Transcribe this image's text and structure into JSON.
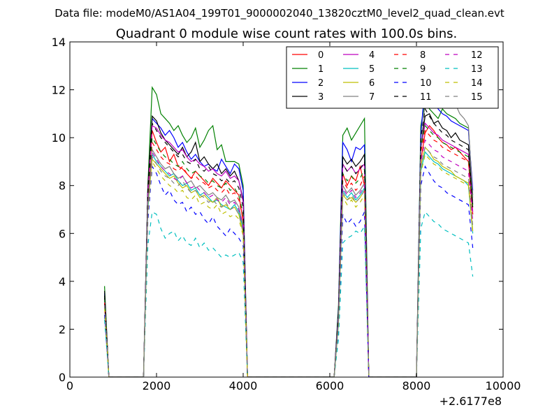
{
  "chart_data": {
    "type": "line",
    "suptitle": "Data file: modeM0/AS1A04_199T01_9000002040_13820cztM0_level2_quad_clean.evt",
    "title": "Quadrant 0 module wise count rates with 100.0s bins.",
    "xlabel": "",
    "ylabel": "",
    "xlim": [
      0,
      10000
    ],
    "ylim": [
      0,
      14
    ],
    "x_offset_label": "+2.6177e8",
    "x_ticks": [
      0,
      2000,
      4000,
      6000,
      8000,
      10000
    ],
    "x_tick_labels": [
      "0",
      "2000",
      "4000",
      "6000",
      "8000",
      "10000"
    ],
    "y_ticks": [
      0,
      2,
      4,
      6,
      8,
      10,
      12,
      14
    ],
    "y_tick_labels": [
      "0",
      "2",
      "4",
      "6",
      "8",
      "10",
      "12",
      "14"
    ],
    "legend": {
      "location": "upper right",
      "columns": 4
    },
    "segments": [
      {
        "x0": 800,
        "step": 100,
        "n": 2
      },
      {
        "x0": 1700,
        "step": 100,
        "n": 25
      },
      {
        "x0": 6100,
        "step": 100,
        "n": 9
      },
      {
        "x0": 8000,
        "step": 100,
        "n": 14
      }
    ],
    "series": [
      {
        "name": "0",
        "color": "#ff0000",
        "dashed": false,
        "segments": [
          [
            3.2,
            0
          ],
          [
            0,
            7.5,
            10.3,
            9.8,
            9.4,
            9.6,
            9.0,
            9.3,
            8.8,
            8.7,
            8.5,
            8.3,
            8.6,
            8.4,
            8.2,
            8.0,
            8.3,
            8.1,
            7.9,
            8.2,
            8.0,
            7.8,
            7.6,
            6.5,
            0
          ],
          [
            0,
            2.5,
            8.5,
            8.0,
            8.4,
            8.2,
            8.8,
            8.0,
            0
          ],
          [
            0,
            9.0,
            10.2,
            10.5,
            10.3,
            10.0,
            9.8,
            9.7,
            9.5,
            9.6,
            9.4,
            9.2,
            9.0,
            6.8
          ]
        ]
      },
      {
        "name": "1",
        "color": "#008000",
        "dashed": false,
        "segments": [
          [
            3.8,
            0
          ],
          [
            0,
            8.0,
            12.1,
            11.8,
            11.0,
            10.8,
            10.6,
            10.3,
            10.5,
            10.1,
            9.8,
            10.0,
            10.4,
            9.6,
            9.9,
            10.3,
            10.5,
            9.5,
            9.7,
            9.0,
            9.0,
            9.0,
            8.9,
            8.0,
            0
          ],
          [
            0,
            3.0,
            10.1,
            10.4,
            9.9,
            10.2,
            10.5,
            10.8,
            0
          ],
          [
            0,
            10.5,
            11.5,
            11.2,
            11.0,
            10.8,
            11.2,
            11.0,
            10.9,
            10.8,
            10.6,
            10.5,
            10.4,
            7.6
          ]
        ]
      },
      {
        "name": "2",
        "color": "#0000ff",
        "dashed": false,
        "segments": [
          [
            3.5,
            0
          ],
          [
            0,
            7.8,
            10.8,
            10.6,
            10.4,
            10.1,
            10.3,
            10.0,
            9.6,
            9.8,
            9.4,
            9.1,
            9.3,
            9.0,
            8.8,
            8.9,
            8.7,
            8.6,
            9.1,
            8.8,
            8.5,
            8.9,
            8.7,
            7.8,
            0
          ],
          [
            0,
            2.8,
            9.8,
            9.5,
            9.0,
            9.6,
            9.5,
            9.7,
            0
          ],
          [
            0,
            10.1,
            12.3,
            11.9,
            11.6,
            11.2,
            11.0,
            10.9,
            10.7,
            10.6,
            10.5,
            10.4,
            10.3,
            7.8
          ]
        ]
      },
      {
        "name": "3",
        "color": "#000000",
        "dashed": false,
        "segments": [
          [
            3.6,
            0
          ],
          [
            0,
            7.9,
            10.9,
            10.7,
            10.2,
            9.9,
            9.7,
            9.5,
            9.3,
            9.6,
            9.2,
            9.4,
            9.8,
            9.0,
            9.2,
            8.9,
            8.7,
            8.9,
            8.5,
            8.7,
            8.4,
            8.6,
            8.2,
            7.4,
            0
          ],
          [
            0,
            2.7,
            9.2,
            8.9,
            9.1,
            8.8,
            9.0,
            9.3,
            0
          ],
          [
            0,
            9.6,
            10.9,
            11.0,
            10.6,
            10.7,
            10.4,
            10.3,
            10.0,
            10.2,
            9.9,
            9.8,
            9.7,
            7.2
          ]
        ]
      },
      {
        "name": "4",
        "color": "#bf00bf",
        "dashed": false,
        "segments": [
          [
            3.3,
            0
          ],
          [
            0,
            7.7,
            10.5,
            10.4,
            10.1,
            9.9,
            9.8,
            9.6,
            9.4,
            9.5,
            9.2,
            9.0,
            9.1,
            8.9,
            8.8,
            8.6,
            8.7,
            8.5,
            8.4,
            8.6,
            8.3,
            8.4,
            8.2,
            7.3,
            0
          ],
          [
            0,
            2.6,
            8.9,
            8.6,
            8.8,
            8.5,
            8.7,
            8.9,
            0
          ],
          [
            0,
            9.5,
            10.6,
            10.4,
            10.2,
            10.1,
            9.9,
            9.8,
            9.7,
            9.6,
            9.5,
            9.4,
            9.3,
            6.9
          ]
        ]
      },
      {
        "name": "5",
        "color": "#00bfbf",
        "dashed": false,
        "segments": [
          [
            3.0,
            0
          ],
          [
            0,
            7.0,
            9.3,
            9.0,
            8.8,
            8.6,
            8.4,
            8.5,
            8.2,
            8.0,
            8.1,
            7.8,
            7.9,
            7.6,
            7.7,
            7.5,
            7.3,
            7.4,
            7.2,
            7.1,
            7.0,
            7.2,
            6.9,
            6.2,
            0
          ],
          [
            0,
            2.2,
            7.8,
            7.5,
            7.7,
            7.4,
            7.6,
            7.9,
            0
          ],
          [
            0,
            8.6,
            9.4,
            9.2,
            9.0,
            8.9,
            8.7,
            8.6,
            8.5,
            8.4,
            8.3,
            8.2,
            8.0,
            6.0
          ]
        ]
      },
      {
        "name": "6",
        "color": "#bfbf00",
        "dashed": false,
        "segments": [
          [
            3.1,
            0
          ],
          [
            0,
            7.2,
            9.1,
            8.9,
            8.7,
            8.5,
            8.3,
            8.4,
            8.1,
            7.9,
            8.0,
            7.7,
            7.8,
            7.5,
            7.6,
            7.4,
            7.3,
            7.5,
            7.1,
            7.2,
            7.0,
            7.1,
            6.8,
            6.0,
            0
          ],
          [
            0,
            2.3,
            7.6,
            7.4,
            7.5,
            7.3,
            7.5,
            7.8,
            0
          ],
          [
            0,
            8.8,
            9.6,
            9.4,
            9.1,
            9.0,
            8.8,
            8.7,
            8.6,
            8.4,
            8.3,
            8.2,
            8.1,
            6.1
          ]
        ]
      },
      {
        "name": "7",
        "color": "#808080",
        "dashed": false,
        "segments": [
          [
            3.2,
            0
          ],
          [
            0,
            7.3,
            9.5,
            9.2,
            8.9,
            8.7,
            8.8,
            8.5,
            8.3,
            8.4,
            8.1,
            8.2,
            7.9,
            8.0,
            7.8,
            7.6,
            7.7,
            7.5,
            7.4,
            7.6,
            7.3,
            7.4,
            7.1,
            6.3,
            0
          ],
          [
            0,
            2.4,
            8.0,
            7.7,
            7.9,
            7.6,
            7.8,
            8.1,
            0
          ],
          [
            0,
            9.5,
            11.5,
            11.8,
            11.6,
            11.9,
            11.7,
            12.0,
            11.6,
            11.4,
            11.0,
            10.8,
            10.5,
            7.5
          ]
        ]
      },
      {
        "name": "8",
        "color": "#ff0000",
        "dashed": true,
        "segments": [
          [
            3.1,
            0
          ],
          [
            0,
            7.4,
            9.8,
            9.5,
            9.2,
            9.0,
            8.9,
            8.7,
            8.6,
            8.8,
            8.5,
            8.3,
            8.4,
            8.2,
            8.1,
            7.9,
            8.0,
            7.8,
            7.7,
            7.9,
            7.6,
            7.7,
            7.4,
            6.6,
            0
          ],
          [
            0,
            2.5,
            8.2,
            7.9,
            8.1,
            7.8,
            8.0,
            8.4,
            0
          ],
          [
            0,
            9.4,
            10.3,
            10.1,
            9.9,
            9.8,
            9.6,
            9.5,
            9.4,
            9.3,
            9.2,
            9.1,
            9.0,
            6.8
          ]
        ]
      },
      {
        "name": "9",
        "color": "#008000",
        "dashed": true,
        "segments": [
          [
            3.3,
            0
          ],
          [
            0,
            7.6,
            10.0,
            9.7,
            9.4,
            9.2,
            9.1,
            8.9,
            8.8,
            9.0,
            8.7,
            8.5,
            8.6,
            8.4,
            8.3,
            8.1,
            8.2,
            8.0,
            7.9,
            8.1,
            7.8,
            7.9,
            7.6,
            6.8,
            0
          ],
          [
            0,
            2.6,
            8.5,
            8.2,
            8.4,
            8.1,
            8.3,
            8.7,
            0
          ],
          [
            0,
            9.6,
            10.5,
            10.3,
            10.1,
            10.0,
            9.8,
            9.7,
            9.6,
            9.5,
            9.4,
            9.3,
            9.2,
            7.0
          ]
        ]
      },
      {
        "name": "10",
        "color": "#0000ff",
        "dashed": true,
        "segments": [
          [
            2.6,
            0
          ],
          [
            0,
            6.5,
            8.8,
            8.5,
            8.0,
            7.6,
            7.8,
            7.4,
            7.2,
            7.3,
            6.9,
            7.1,
            6.8,
            6.9,
            6.6,
            6.4,
            6.7,
            6.3,
            6.1,
            5.9,
            6.2,
            6.0,
            5.8,
            5.5,
            0
          ],
          [
            0,
            2.0,
            6.8,
            6.4,
            6.6,
            6.3,
            6.5,
            6.9,
            0
          ],
          [
            0,
            8.0,
            8.8,
            8.5,
            8.2,
            8.0,
            7.9,
            7.7,
            7.6,
            7.5,
            7.4,
            7.3,
            7.2,
            5.4
          ]
        ]
      },
      {
        "name": "11",
        "color": "#000000",
        "dashed": true,
        "segments": [
          [
            3.4,
            0
          ],
          [
            0,
            7.8,
            10.6,
            10.3,
            10.0,
            9.8,
            9.6,
            9.4,
            9.2,
            9.3,
            9.0,
            8.9,
            9.1,
            8.7,
            8.6,
            8.8,
            8.5,
            8.4,
            8.2,
            8.3,
            8.1,
            8.2,
            7.9,
            7.1,
            0
          ],
          [
            0,
            2.7,
            8.9,
            8.6,
            8.8,
            8.5,
            8.7,
            9.0,
            0
          ],
          [
            0,
            10.0,
            11.2,
            10.9,
            10.6,
            10.4,
            10.2,
            10.1,
            9.9,
            9.8,
            9.7,
            9.6,
            9.5,
            7.1
          ]
        ]
      },
      {
        "name": "12",
        "color": "#bf00bf",
        "dashed": true,
        "segments": [
          [
            3.0,
            0
          ],
          [
            0,
            7.1,
            9.4,
            9.1,
            8.8,
            8.6,
            8.5,
            8.3,
            8.2,
            8.4,
            8.1,
            7.9,
            8.0,
            7.8,
            7.7,
            7.5,
            7.6,
            7.4,
            7.3,
            7.5,
            7.2,
            7.3,
            7.0,
            6.3,
            0
          ],
          [
            0,
            2.3,
            7.9,
            7.6,
            7.8,
            7.5,
            7.7,
            8.0,
            0
          ],
          [
            0,
            9.0,
            9.9,
            9.7,
            9.5,
            9.4,
            9.2,
            9.1,
            9.0,
            8.9,
            8.8,
            8.7,
            8.6,
            6.5
          ]
        ]
      },
      {
        "name": "13",
        "color": "#00bfbf",
        "dashed": true,
        "segments": [
          [
            2.4,
            0
          ],
          [
            0,
            5.5,
            6.9,
            6.8,
            6.2,
            5.8,
            6.0,
            6.1,
            5.7,
            5.9,
            5.6,
            5.5,
            5.8,
            5.4,
            5.6,
            5.3,
            5.4,
            5.2,
            5.0,
            5.1,
            5.0,
            5.1,
            5.2,
            4.8,
            0
          ],
          [
            0,
            1.6,
            5.6,
            5.8,
            5.9,
            6.1,
            6.0,
            6.3,
            0
          ],
          [
            0,
            6.2,
            6.9,
            6.7,
            6.5,
            6.4,
            6.2,
            6.1,
            6.0,
            5.9,
            5.8,
            5.7,
            5.6,
            4.2
          ]
        ]
      },
      {
        "name": "14",
        "color": "#bfbf00",
        "dashed": true,
        "segments": [
          [
            2.9,
            0
          ],
          [
            0,
            6.8,
            9.0,
            8.7,
            8.4,
            8.2,
            8.0,
            7.9,
            7.7,
            7.8,
            7.5,
            7.4,
            7.6,
            7.2,
            7.3,
            7.1,
            7.0,
            7.2,
            6.8,
            6.9,
            6.7,
            6.8,
            6.6,
            5.9,
            0
          ],
          [
            0,
            2.2,
            7.5,
            7.2,
            7.4,
            7.1,
            7.3,
            7.6,
            0
          ],
          [
            0,
            8.5,
            9.3,
            9.1,
            8.9,
            8.8,
            8.6,
            8.5,
            8.4,
            8.3,
            8.2,
            8.1,
            8.0,
            6.0
          ]
        ]
      },
      {
        "name": "15",
        "color": "#808080",
        "dashed": true,
        "segments": [
          [
            3.0,
            0
          ],
          [
            0,
            7.0,
            9.2,
            8.9,
            8.6,
            8.4,
            8.3,
            8.1,
            8.0,
            8.2,
            7.9,
            7.7,
            7.8,
            7.6,
            7.5,
            7.3,
            7.4,
            7.2,
            7.1,
            7.3,
            7.0,
            7.1,
            6.8,
            6.1,
            0
          ],
          [
            0,
            2.3,
            7.7,
            7.4,
            7.6,
            7.3,
            7.5,
            7.8,
            0
          ],
          [
            0,
            8.8,
            9.6,
            9.4,
            9.2,
            9.1,
            8.9,
            8.8,
            8.7,
            8.6,
            8.5,
            8.4,
            8.3,
            6.3
          ]
        ]
      }
    ]
  }
}
